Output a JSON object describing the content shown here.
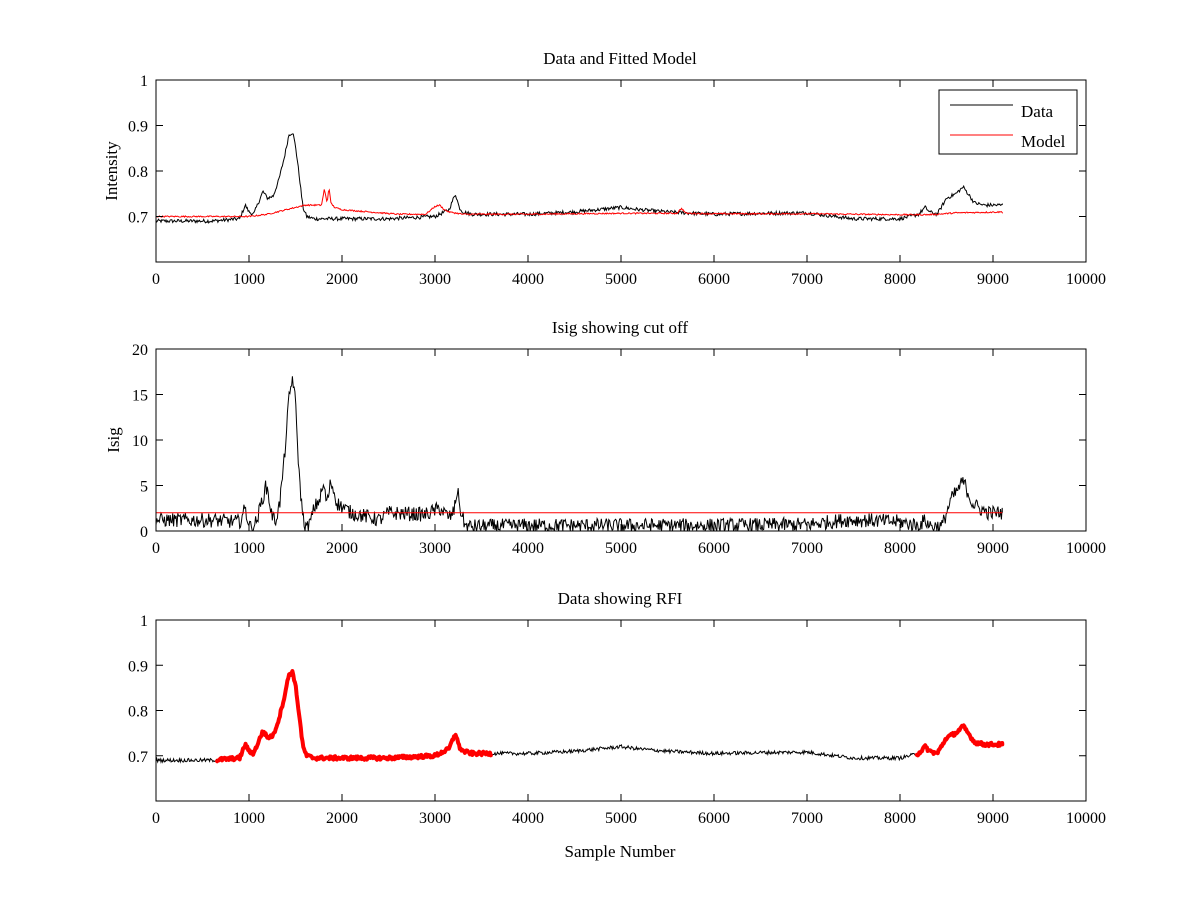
{
  "figure": {
    "background": "#ffffff"
  },
  "chart_data": [
    {
      "type": "line",
      "title": "Data and Fitted Model",
      "xlabel": "",
      "ylabel": "Intensity",
      "xlim": [
        0,
        10000
      ],
      "ylim": [
        0.6,
        1.0
      ],
      "xticks": [
        0,
        1000,
        2000,
        3000,
        4000,
        5000,
        6000,
        7000,
        8000,
        9000,
        10000
      ],
      "yticks": [
        0.7,
        0.8,
        0.9,
        1
      ],
      "yticklabels": [
        "0.7",
        "0.8",
        "0.9",
        "1"
      ],
      "grid": false,
      "legend": {
        "placement": "top-right",
        "entries": [
          "Data",
          "Model"
        ]
      },
      "series": [
        {
          "name": "Data",
          "color": "#000000",
          "noise": 0.004,
          "x": [
            0,
            600,
            900,
            960,
            1000,
            1050,
            1100,
            1150,
            1200,
            1260,
            1320,
            1380,
            1430,
            1470,
            1500,
            1540,
            1580,
            1620,
            1700,
            2000,
            2500,
            3000,
            3150,
            3220,
            3260,
            3300,
            3400,
            4000,
            4500,
            5000,
            5200,
            5500,
            6000,
            6500,
            7000,
            7300,
            7500,
            8000,
            8200,
            8270,
            8320,
            8400,
            8500,
            8550,
            8600,
            8680,
            8750,
            8800,
            8900,
            9000,
            9100
          ],
          "y": [
            0.69,
            0.69,
            0.695,
            0.725,
            0.71,
            0.705,
            0.73,
            0.755,
            0.74,
            0.745,
            0.78,
            0.83,
            0.88,
            0.885,
            0.855,
            0.79,
            0.72,
            0.7,
            0.695,
            0.695,
            0.695,
            0.7,
            0.715,
            0.75,
            0.72,
            0.71,
            0.705,
            0.705,
            0.71,
            0.72,
            0.715,
            0.71,
            0.705,
            0.707,
            0.708,
            0.7,
            0.695,
            0.695,
            0.705,
            0.72,
            0.71,
            0.705,
            0.74,
            0.745,
            0.75,
            0.765,
            0.745,
            0.73,
            0.725,
            0.725,
            0.725
          ]
        },
        {
          "name": "Model",
          "color": "#ff0000",
          "noise": 0.0015,
          "x": [
            0,
            1000,
            1200,
            1400,
            1600,
            1780,
            1810,
            1840,
            1860,
            1880,
            1920,
            2000,
            2300,
            2600,
            2900,
            3000,
            3050,
            3100,
            3150,
            3300,
            4000,
            5000,
            5600,
            5650,
            5700,
            6000,
            7000,
            7500,
            8000,
            8300,
            8400,
            8600,
            9100
          ],
          "y": [
            0.7,
            0.7,
            0.705,
            0.715,
            0.725,
            0.725,
            0.76,
            0.73,
            0.765,
            0.73,
            0.72,
            0.715,
            0.71,
            0.705,
            0.705,
            0.722,
            0.725,
            0.715,
            0.71,
            0.705,
            0.705,
            0.707,
            0.707,
            0.718,
            0.707,
            0.706,
            0.706,
            0.705,
            0.704,
            0.704,
            0.705,
            0.708,
            0.71
          ]
        }
      ]
    },
    {
      "type": "line",
      "title": "Isig showing cut off",
      "xlabel": "",
      "ylabel": "Isig",
      "xlim": [
        0,
        10000
      ],
      "ylim": [
        0,
        20
      ],
      "xticks": [
        0,
        1000,
        2000,
        3000,
        4000,
        5000,
        6000,
        7000,
        8000,
        9000,
        10000
      ],
      "yticks": [
        0,
        5,
        10,
        15,
        20
      ],
      "yticklabels": [
        "0",
        "5",
        "10",
        "15",
        "20"
      ],
      "grid": false,
      "series": [
        {
          "name": "Isig",
          "color": "#000000",
          "noise": 0.8,
          "clip_min": 0,
          "x": [
            0,
            600,
            900,
            960,
            980,
            1020,
            1080,
            1130,
            1180,
            1200,
            1240,
            1280,
            1330,
            1380,
            1430,
            1470,
            1500,
            1540,
            1580,
            1620,
            1660,
            1700,
            1760,
            1800,
            1840,
            1880,
            1950,
            2100,
            2300,
            2400,
            2500,
            2900,
            3050,
            3150,
            3200,
            3240,
            3280,
            3330,
            3400,
            4000,
            5000,
            6000,
            7000,
            7400,
            7600,
            8000,
            8200,
            8270,
            8320,
            8400,
            8450,
            8500,
            8550,
            8600,
            8650,
            8680,
            8720,
            8780,
            8850,
            8950,
            9100
          ],
          "y": [
            1.2,
            1.2,
            1.0,
            2.5,
            1.5,
            0.3,
            1.0,
            3.0,
            4.8,
            4.5,
            2.0,
            1.0,
            3.0,
            8.0,
            14.5,
            17.0,
            14.0,
            6.0,
            1.5,
            0.2,
            1.0,
            2.5,
            3.5,
            5.0,
            3.0,
            5.5,
            3.0,
            2.0,
            1.5,
            1.2,
            2.0,
            1.8,
            2.5,
            1.5,
            2.0,
            4.5,
            2.0,
            0.5,
            0.5,
            0.6,
            0.6,
            0.6,
            0.7,
            1.2,
            1.2,
            1.0,
            0.6,
            1.2,
            0.6,
            0.5,
            0.5,
            2.0,
            3.5,
            4.2,
            5.0,
            5.5,
            4.5,
            3.0,
            2.5,
            2.0,
            2.0
          ]
        },
        {
          "name": "Cut off",
          "color": "#ff0000",
          "noise": 0,
          "x": [
            0,
            9100
          ],
          "y": [
            2,
            2
          ]
        }
      ]
    },
    {
      "type": "line",
      "title": "Data showing RFI",
      "xlabel": "Sample Number",
      "ylabel": "",
      "xlim": [
        0,
        10000
      ],
      "ylim": [
        0.6,
        1.0
      ],
      "xticks": [
        0,
        1000,
        2000,
        3000,
        4000,
        5000,
        6000,
        7000,
        8000,
        9000,
        10000
      ],
      "yticks": [
        0.7,
        0.8,
        0.9,
        1
      ],
      "yticklabels": [
        "0.7",
        "0.8",
        "0.9",
        "1"
      ],
      "grid": false,
      "series": [
        {
          "name": "Data",
          "color": "#000000",
          "noise": 0.004,
          "x": [
            0,
            600,
            900,
            960,
            1000,
            1050,
            1100,
            1150,
            1200,
            1260,
            1320,
            1380,
            1430,
            1470,
            1500,
            1540,
            1580,
            1620,
            1700,
            2000,
            2500,
            3000,
            3150,
            3220,
            3260,
            3300,
            3400,
            4000,
            4500,
            5000,
            5200,
            5500,
            6000,
            6500,
            7000,
            7300,
            7500,
            8000,
            8200,
            8270,
            8320,
            8400,
            8500,
            8550,
            8600,
            8680,
            8750,
            8800,
            8900,
            9000,
            9100
          ],
          "y": [
            0.69,
            0.69,
            0.695,
            0.725,
            0.71,
            0.705,
            0.73,
            0.755,
            0.74,
            0.745,
            0.78,
            0.83,
            0.88,
            0.885,
            0.855,
            0.79,
            0.72,
            0.7,
            0.695,
            0.695,
            0.695,
            0.7,
            0.715,
            0.75,
            0.72,
            0.71,
            0.705,
            0.705,
            0.71,
            0.72,
            0.715,
            0.71,
            0.705,
            0.707,
            0.708,
            0.7,
            0.695,
            0.695,
            0.705,
            0.72,
            0.71,
            0.705,
            0.74,
            0.745,
            0.75,
            0.765,
            0.745,
            0.73,
            0.725,
            0.725,
            0.725
          ]
        }
      ],
      "rfi_highlight": {
        "color": "#ff0000",
        "ranges": [
          [
            650,
            3600
          ],
          [
            8180,
            9100
          ]
        ]
      }
    }
  ]
}
